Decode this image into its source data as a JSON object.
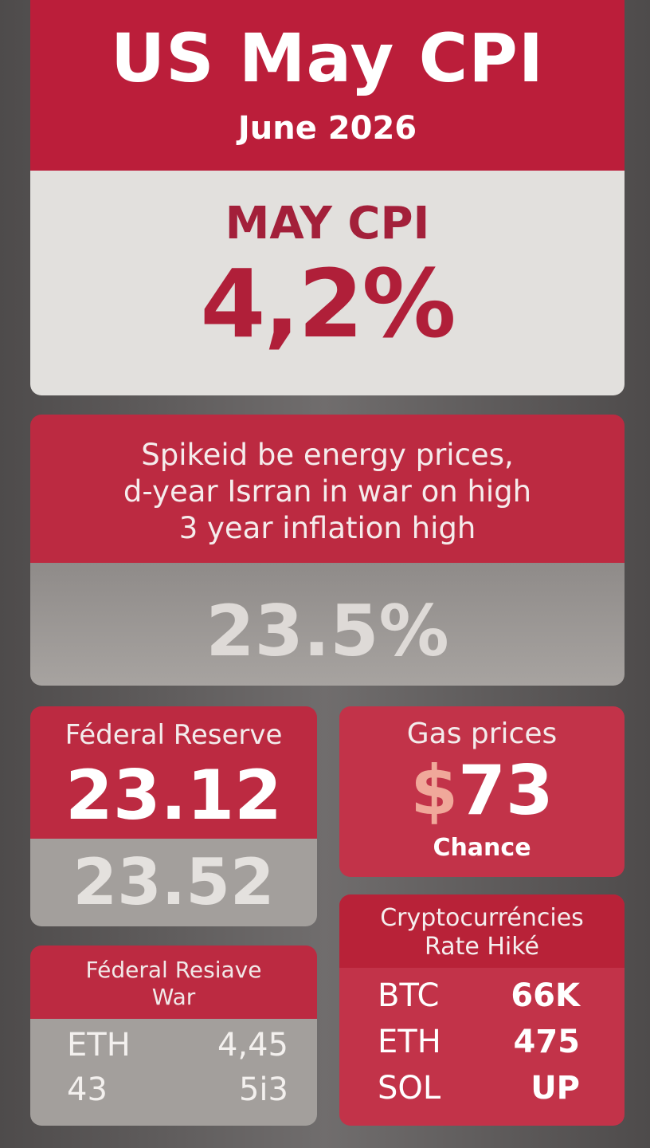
{
  "header": {
    "title": "US May CPI",
    "date": "June 2026"
  },
  "cpi": {
    "label": "MAY CPI",
    "value": "4,2%"
  },
  "energy": {
    "lines": [
      "Spikeid be energy prices,",
      "d-year Isrran in war on high",
      "3 year inflation high"
    ],
    "value": "23.5%"
  },
  "federal_reserve": {
    "label": "Féderal Reserve",
    "value": "23.12",
    "value_secondary": "23.52"
  },
  "gas": {
    "label": "Gas prices",
    "currency": "$",
    "value": "73",
    "sublabel": "Chance"
  },
  "federal_war": {
    "title_line1": "Féderal Resiave",
    "title_line2": "War",
    "rows": [
      {
        "left": "ETH",
        "right": "4,45"
      },
      {
        "left": "43",
        "right": "5i3"
      }
    ]
  },
  "crypto": {
    "title_line1": "Cryptocurréncies",
    "title_line2": "Rate Hiké",
    "rows": [
      {
        "ticker": "BTC",
        "value": "66K"
      },
      {
        "ticker": "ETH",
        "value": "475"
      },
      {
        "ticker": "SOL",
        "value": "UP"
      }
    ]
  },
  "colors": {
    "brand_red": "#bb1e3a",
    "panel_red": "#bc2a41",
    "panel_grey": "#a39f9c",
    "panel_light": "#e2e0dd"
  }
}
